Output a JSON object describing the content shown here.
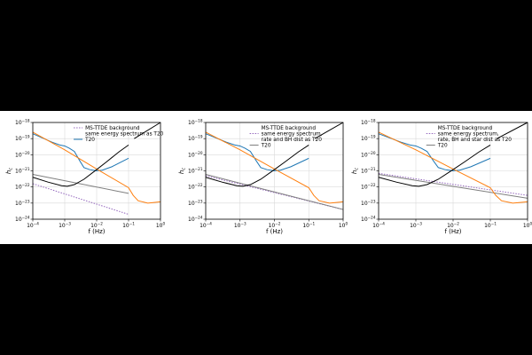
{
  "chart_data": [
    {
      "type": "line",
      "title": "",
      "xlabel": "f (Hz)",
      "ylabel": "h",
      "ylabel_sub": "c",
      "x_scale": "log",
      "y_scale": "log",
      "xlim": [
        0.0001,
        1
      ],
      "ylim": [
        1e-24,
        1e-18
      ],
      "x_ticks": [
        {
          "value": 0.0001,
          "base": "10",
          "exp": "−4"
        },
        {
          "value": 0.001,
          "base": "10",
          "exp": "−3"
        },
        {
          "value": 0.01,
          "base": "10",
          "exp": "−2"
        },
        {
          "value": 0.1,
          "base": "10",
          "exp": "−1"
        },
        {
          "value": 1,
          "base": "10",
          "exp": "0"
        }
      ],
      "y_ticks": [
        {
          "value": 1e-24,
          "base": "10",
          "exp": "−24"
        },
        {
          "value": 1e-23,
          "base": "10",
          "exp": "−23"
        },
        {
          "value": 1e-22,
          "base": "10",
          "exp": "−22"
        },
        {
          "value": 1e-21,
          "base": "10",
          "exp": "−21"
        },
        {
          "value": 1e-20,
          "base": "10",
          "exp": "−20"
        },
        {
          "value": 1e-19,
          "base": "10",
          "exp": "−19"
        },
        {
          "value": 1e-18,
          "base": "10",
          "exp": "−18"
        }
      ],
      "grid": true,
      "legend_position": "top-right",
      "legend": [
        {
          "label": "MS-TTDE background",
          "style": "dotted",
          "color": "#9467bd"
        },
        {
          "label": "same energy spectrum as T20",
          "style": "none",
          "color": ""
        },
        {
          "label": "T20",
          "style": "solid",
          "color": "#1f77b4"
        }
      ],
      "series": [
        {
          "style": "dotted",
          "color": "#9467bd",
          "x": [
            0.0001,
            0.1
          ],
          "y": [
            1.6e-22,
            2e-24
          ]
        },
        {
          "style": "solid",
          "color": "#1f77b4",
          "x": [
            0.0001,
            0.0002,
            0.0004,
            0.0007,
            0.001,
            0.0014,
            0.002,
            0.003,
            0.004,
            0.006,
            0.01,
            0.015,
            0.03,
            0.1
          ],
          "y": [
            2e-19,
            1.1e-19,
            6e-20,
            4e-20,
            3.5e-20,
            2.5e-20,
            1.6e-20,
            4e-21,
            1.6e-21,
            1.2e-21,
            1e-21,
            1.1e-21,
            1.8e-21,
            6e-21
          ]
        },
        {
          "style": "solid",
          "color": "#7f7f7f",
          "x": [
            0.0001,
            0.1
          ],
          "y": [
            6e-22,
            4e-23
          ]
        },
        {
          "style": "solid",
          "color": "#ff7f0e",
          "x": [
            0.0001,
            0.001,
            0.01,
            0.1,
            0.14,
            0.2,
            0.4,
            1
          ],
          "y": [
            2.5e-19,
            2e-20,
            1.3e-21,
            9e-23,
            3e-23,
            1.4e-23,
            1e-23,
            1.2e-23
          ]
        },
        {
          "style": "solid",
          "color": "#000000",
          "x": [
            0.0001,
            0.0003,
            0.0008,
            0.0012,
            0.002,
            0.004,
            0.01,
            0.02,
            0.05,
            0.1
          ],
          "y": [
            4e-22,
            2e-22,
            1.2e-22,
            1.1e-22,
            1.4e-22,
            3e-22,
            1.2e-21,
            3.5e-21,
            1.5e-20,
            4e-20
          ]
        },
        {
          "style": "solid",
          "color": "#000000",
          "x": [
            0.15,
            1
          ],
          "y": [
            1e-19,
            1e-18
          ]
        }
      ]
    },
    {
      "type": "line",
      "title": "",
      "xlabel": "f (Hz)",
      "ylabel": "h",
      "ylabel_sub": "c",
      "x_scale": "log",
      "y_scale": "log",
      "xlim": [
        0.0001,
        1
      ],
      "ylim": [
        1e-24,
        1e-18
      ],
      "x_ticks": [
        {
          "value": 0.0001,
          "base": "10",
          "exp": "−4"
        },
        {
          "value": 0.001,
          "base": "10",
          "exp": "−3"
        },
        {
          "value": 0.01,
          "base": "10",
          "exp": "−2"
        },
        {
          "value": 0.1,
          "base": "10",
          "exp": "−1"
        },
        {
          "value": 1,
          "base": "10",
          "exp": "0"
        }
      ],
      "y_ticks": [
        {
          "value": 1e-24,
          "base": "10",
          "exp": "−24"
        },
        {
          "value": 1e-23,
          "base": "10",
          "exp": "−23"
        },
        {
          "value": 1e-22,
          "base": "10",
          "exp": "−22"
        },
        {
          "value": 1e-21,
          "base": "10",
          "exp": "−21"
        },
        {
          "value": 1e-20,
          "base": "10",
          "exp": "−20"
        },
        {
          "value": 1e-19,
          "base": "10",
          "exp": "−19"
        },
        {
          "value": 1e-18,
          "base": "10",
          "exp": "−18"
        }
      ],
      "grid": true,
      "legend_position": "top-right",
      "legend": [
        {
          "label": "MS-TTDE background",
          "style": "none",
          "color": ""
        },
        {
          "label": "same energy spectrum,",
          "style": "dotted",
          "color": "#9467bd"
        },
        {
          "label": "rate and BH dist as T20",
          "style": "none",
          "color": ""
        },
        {
          "label": "T20",
          "style": "solid",
          "color": "#7f7f7f"
        }
      ],
      "series": [
        {
          "style": "dotted",
          "color": "#9467bd",
          "x": [
            0.0001,
            1
          ],
          "y": [
            5e-22,
            4e-24
          ]
        },
        {
          "style": "solid",
          "color": "#1f77b4",
          "x": [
            0.0001,
            0.0002,
            0.0004,
            0.0007,
            0.001,
            0.0014,
            0.002,
            0.003,
            0.004,
            0.006,
            0.01,
            0.015,
            0.03,
            0.1
          ],
          "y": [
            2e-19,
            1.1e-19,
            6e-20,
            4e-20,
            3.5e-20,
            2.5e-20,
            1.6e-20,
            4e-21,
            1.6e-21,
            1.2e-21,
            1e-21,
            1.1e-21,
            1.8e-21,
            6e-21
          ]
        },
        {
          "style": "solid",
          "color": "#7f7f7f",
          "x": [
            0.0001,
            1
          ],
          "y": [
            6e-22,
            4e-24
          ]
        },
        {
          "style": "solid",
          "color": "#ff7f0e",
          "x": [
            0.0001,
            0.001,
            0.01,
            0.1,
            0.14,
            0.2,
            0.4,
            1
          ],
          "y": [
            2.5e-19,
            2e-20,
            1.3e-21,
            9e-23,
            3e-23,
            1.4e-23,
            1e-23,
            1.2e-23
          ]
        },
        {
          "style": "solid",
          "color": "#000000",
          "x": [
            0.0001,
            0.0003,
            0.0008,
            0.0012,
            0.002,
            0.004,
            0.01,
            0.02,
            0.05,
            0.1
          ],
          "y": [
            4e-22,
            2e-22,
            1.2e-22,
            1.1e-22,
            1.4e-22,
            3e-22,
            1.2e-21,
            3.5e-21,
            1.5e-20,
            4e-20
          ]
        },
        {
          "style": "solid",
          "color": "#000000",
          "x": [
            0.15,
            1
          ],
          "y": [
            1e-19,
            1e-18
          ]
        }
      ]
    },
    {
      "type": "line",
      "title": "",
      "xlabel": "f (Hz)",
      "ylabel": "h",
      "ylabel_sub": "c",
      "x_scale": "log",
      "y_scale": "log",
      "xlim": [
        0.0001,
        1
      ],
      "ylim": [
        1e-24,
        1e-18
      ],
      "x_ticks": [
        {
          "value": 0.0001,
          "base": "10",
          "exp": "−4"
        },
        {
          "value": 0.001,
          "base": "10",
          "exp": "−3"
        },
        {
          "value": 0.01,
          "base": "10",
          "exp": "−2"
        },
        {
          "value": 0.1,
          "base": "10",
          "exp": "−1"
        },
        {
          "value": 1,
          "base": "10",
          "exp": "0"
        }
      ],
      "y_ticks": [
        {
          "value": 1e-24,
          "base": "10",
          "exp": "−24"
        },
        {
          "value": 1e-23,
          "base": "10",
          "exp": "−23"
        },
        {
          "value": 1e-22,
          "base": "10",
          "exp": "−22"
        },
        {
          "value": 1e-21,
          "base": "10",
          "exp": "−21"
        },
        {
          "value": 1e-20,
          "base": "10",
          "exp": "−20"
        },
        {
          "value": 1e-19,
          "base": "10",
          "exp": "−19"
        },
        {
          "value": 1e-18,
          "base": "10",
          "exp": "−18"
        }
      ],
      "grid": true,
      "legend_position": "top-right",
      "legend": [
        {
          "label": "MS-TTDE background",
          "style": "none",
          "color": ""
        },
        {
          "label": "same energy spectrum,",
          "style": "dotted",
          "color": "#9467bd"
        },
        {
          "label": "rate, BH and star dist as T20",
          "style": "none",
          "color": ""
        },
        {
          "label": "T20",
          "style": "solid",
          "color": "#7f7f7f"
        }
      ],
      "series": [
        {
          "style": "dotted",
          "color": "#9467bd",
          "x": [
            0.0001,
            1
          ],
          "y": [
            7e-22,
            3e-23
          ]
        },
        {
          "style": "solid",
          "color": "#1f77b4",
          "x": [
            0.0001,
            0.0002,
            0.0004,
            0.0007,
            0.001,
            0.0014,
            0.002,
            0.003,
            0.004,
            0.006,
            0.01,
            0.015,
            0.03,
            0.1
          ],
          "y": [
            2e-19,
            1.1e-19,
            6e-20,
            4e-20,
            3.5e-20,
            2.5e-20,
            1.6e-20,
            4e-21,
            1.6e-21,
            1.2e-21,
            1e-21,
            1.1e-21,
            1.8e-21,
            6e-21
          ]
        },
        {
          "style": "solid",
          "color": "#7f7f7f",
          "x": [
            0.0001,
            1
          ],
          "y": [
            6e-22,
            2e-23
          ]
        },
        {
          "style": "solid",
          "color": "#ff7f0e",
          "x": [
            0.0001,
            0.001,
            0.01,
            0.1,
            0.14,
            0.2,
            0.4,
            1
          ],
          "y": [
            2.5e-19,
            2e-20,
            1.3e-21,
            9e-23,
            3e-23,
            1.4e-23,
            1e-23,
            1.2e-23
          ]
        },
        {
          "style": "solid",
          "color": "#000000",
          "x": [
            0.0001,
            0.0003,
            0.0008,
            0.0012,
            0.002,
            0.004,
            0.01,
            0.02,
            0.05,
            0.1
          ],
          "y": [
            4e-22,
            2e-22,
            1.2e-22,
            1.1e-22,
            1.4e-22,
            3e-22,
            1.2e-21,
            3.5e-21,
            1.5e-20,
            4e-20
          ]
        },
        {
          "style": "solid",
          "color": "#000000",
          "x": [
            0.15,
            1
          ],
          "y": [
            1e-19,
            1e-18
          ]
        }
      ]
    }
  ]
}
